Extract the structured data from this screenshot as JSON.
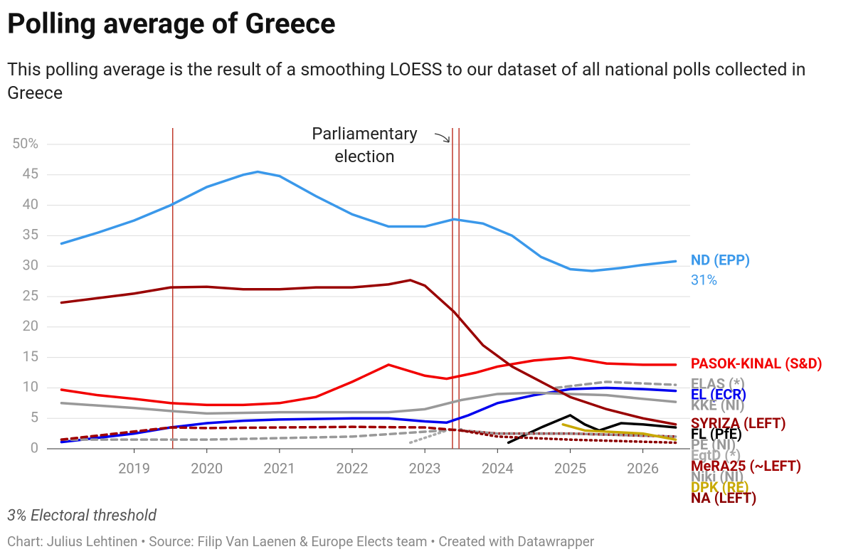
{
  "chart_data": {
    "type": "line",
    "title": "Polling average of Greece",
    "subtitle": "This polling average is the result of a smoothing LOESS to our dataset of all national polls collected in Greece",
    "annotation": "Parliamentary election",
    "note": "3% Electoral threshold",
    "credit": "Chart: Julius Lehtinen • Source: Filip Van Laenen & Europe Elects team • Created with Datawrapper",
    "xlim": [
      2017.8,
      2026.65
    ],
    "xticks": [
      2019,
      2020,
      2021,
      2022,
      2023,
      2024,
      2025,
      2026
    ],
    "ylim": [
      0,
      50
    ],
    "yticks": [
      0,
      5,
      10,
      15,
      20,
      25,
      30,
      35,
      40,
      {
        "value": 45,
        "label": "45"
      },
      {
        "value": 50,
        "label": "50%"
      }
    ],
    "grid": true,
    "vlines": [
      2019.53,
      2023.38,
      2023.47
    ],
    "series": [
      {
        "name": "ND (EPP)",
        "color": "#3a98ea",
        "style": "solid",
        "x": [
          2018.0,
          2018.5,
          2019.0,
          2019.5,
          2020.0,
          2020.5,
          2020.7,
          2021.0,
          2021.5,
          2022.0,
          2022.5,
          2023.0,
          2023.4,
          2023.8,
          2024.2,
          2024.6,
          2025.0,
          2025.3,
          2025.7,
          2026.0,
          2026.45
        ],
        "values": [
          33.7,
          35.5,
          37.5,
          40,
          43,
          45,
          45.5,
          44.8,
          41.5,
          38.5,
          36.5,
          36.5,
          37.7,
          37,
          35,
          31.5,
          29.5,
          29.2,
          29.7,
          30.2,
          30.8
        ],
        "value_labels": [
          null,
          null,
          null,
          null,
          null,
          null,
          null,
          null,
          null,
          null,
          null,
          null,
          null,
          null,
          null,
          null,
          null,
          null,
          null,
          null,
          "31%"
        ]
      },
      {
        "name": "PASOK-KINAL (S&D)",
        "color": "#f20000",
        "style": "solid",
        "x": [
          2018.0,
          2018.5,
          2019.0,
          2019.5,
          2020.0,
          2020.5,
          2021.0,
          2021.5,
          2022.0,
          2022.5,
          2023.0,
          2023.3,
          2023.7,
          2024.0,
          2024.5,
          2025.0,
          2025.5,
          2026.0,
          2026.45
        ],
        "values": [
          9.7,
          8.8,
          8.2,
          7.5,
          7.2,
          7.2,
          7.5,
          8.5,
          11,
          13.8,
          12,
          11.5,
          12.5,
          13.5,
          14.5,
          15,
          14,
          13.8,
          13.8
        ]
      },
      {
        "name": "ELAS (*)",
        "color": "#999999",
        "style": "dashed",
        "x": [
          2024.8,
          2025.5,
          2026.45
        ],
        "values": [
          10,
          11,
          10.5
        ]
      },
      {
        "name": "EL (ECR)",
        "color": "#0000ee",
        "style": "solid",
        "x": [
          2018.0,
          2019.0,
          2019.5,
          2020.0,
          2020.5,
          2021.0,
          2022.0,
          2022.5,
          2023.0,
          2023.3,
          2023.6,
          2024.0,
          2024.5,
          2025.0,
          2025.5,
          2026.0,
          2026.45
        ],
        "values": [
          1.1,
          2.5,
          3.5,
          4.2,
          4.6,
          4.8,
          5,
          5,
          4.5,
          4.3,
          5.5,
          7.5,
          8.8,
          9.8,
          10,
          9.8,
          9.5
        ]
      },
      {
        "name": "KKE (NI)",
        "color": "#999999",
        "style": "solid",
        "x": [
          2018.0,
          2019.0,
          2019.5,
          2020.0,
          2021.0,
          2022.0,
          2022.5,
          2023.0,
          2023.5,
          2024.0,
          2024.5,
          2025.0,
          2025.5,
          2026.0,
          2026.45
        ],
        "values": [
          7.5,
          6.7,
          6.2,
          5.8,
          6,
          6,
          6,
          6.5,
          8,
          9,
          9.2,
          9,
          8.8,
          8.2,
          7.7
        ]
      },
      {
        "name": "SYRIZA (LEFT)",
        "color": "#990000",
        "style": "solid",
        "x": [
          2018.0,
          2019.0,
          2019.5,
          2020.0,
          2020.5,
          2021.0,
          2021.5,
          2022.0,
          2022.5,
          2022.8,
          2023.0,
          2023.4,
          2023.8,
          2024.2,
          2024.6,
          2025.0,
          2025.5,
          2026.0,
          2026.45
        ],
        "values": [
          24,
          25.5,
          26.5,
          26.6,
          26.2,
          26.2,
          26.5,
          26.5,
          27,
          27.7,
          26.8,
          22.5,
          17,
          13.5,
          11,
          8.5,
          6.5,
          5,
          4
        ]
      },
      {
        "name": "FL (PfE)",
        "color": "#000000",
        "style": "solid",
        "x": [
          2024.15,
          2024.6,
          2025.0,
          2025.2,
          2025.4,
          2025.7,
          2026.0,
          2026.45
        ],
        "values": [
          1,
          3.5,
          5.5,
          4,
          3,
          4.2,
          4,
          3.5
        ]
      },
      {
        "name": "EgtD (*)",
        "color": "#aaaaaa",
        "style": "dotted",
        "x": [
          2022.8,
          2023.3
        ],
        "values": [
          1,
          3
        ]
      },
      {
        "name": "PE (NI)",
        "color": "#999999",
        "style": "dashed",
        "x": [
          2018.0,
          2020.0,
          2022.0,
          2023.0,
          2023.5
        ],
        "values": [
          1.5,
          1.5,
          2,
          2.8,
          3.2
        ]
      },
      {
        "name": "MeRA25 (~LEFT)",
        "color": "#a00000",
        "style": "dashed",
        "x": [
          2018.0,
          2019.5,
          2020.0,
          2021.0,
          2022.0,
          2023.0,
          2023.5,
          2024.0,
          2025.0,
          2026.45
        ],
        "values": [
          1.5,
          3.5,
          3.4,
          3.5,
          3.6,
          3.5,
          3,
          2.5,
          2.5,
          2
        ]
      },
      {
        "name": "Niki (NI)",
        "color": "#999999",
        "style": "dotted",
        "x": [
          2023.5,
          2024.0,
          2025.0,
          2026.45
        ],
        "values": [
          3,
          2.5,
          2.5,
          2
        ]
      },
      {
        "name": "DPK (RE)",
        "color": "#c8a800",
        "style": "solid",
        "x": [
          2024.9,
          2025.2,
          2026.0,
          2026.45
        ],
        "values": [
          4,
          3,
          2.5,
          1.5
        ]
      },
      {
        "name": "NA (LEFT)",
        "color": "#8b0000",
        "style": "dotted",
        "x": [
          2023.5,
          2024.0,
          2025.0,
          2026.45
        ],
        "values": [
          3,
          2,
          1.5,
          1
        ]
      }
    ]
  }
}
